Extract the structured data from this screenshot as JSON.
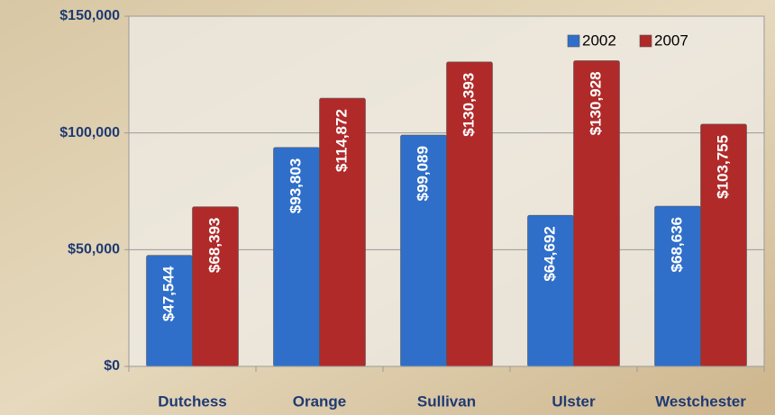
{
  "chart_data": {
    "type": "bar",
    "categories": [
      "Dutchess",
      "Orange",
      "Sullivan",
      "Ulster",
      "Westchester"
    ],
    "series": [
      {
        "name": "2002",
        "color": "#2f6fc9",
        "values": [
          47544,
          93803,
          99089,
          64692,
          68636
        ],
        "value_labels": [
          "$47,544",
          "$93,803",
          "$99,089",
          "$64,692",
          "$68,636"
        ]
      },
      {
        "name": "2007",
        "color": "#b02a2a",
        "values": [
          68393,
          114872,
          130393,
          130928,
          103755
        ],
        "value_labels": [
          "$68,393",
          "$114,872",
          "$130,393",
          "$130,928",
          "$103,755"
        ]
      }
    ],
    "ylim": [
      0,
      150000
    ],
    "yticks": [
      {
        "value": 0,
        "label": "$0"
      },
      {
        "value": 50000,
        "label": "$50,000"
      },
      {
        "value": 100000,
        "label": "$100,000"
      },
      {
        "value": 150000,
        "label": "$150,000"
      }
    ],
    "grid": true,
    "legend": "top-right"
  }
}
